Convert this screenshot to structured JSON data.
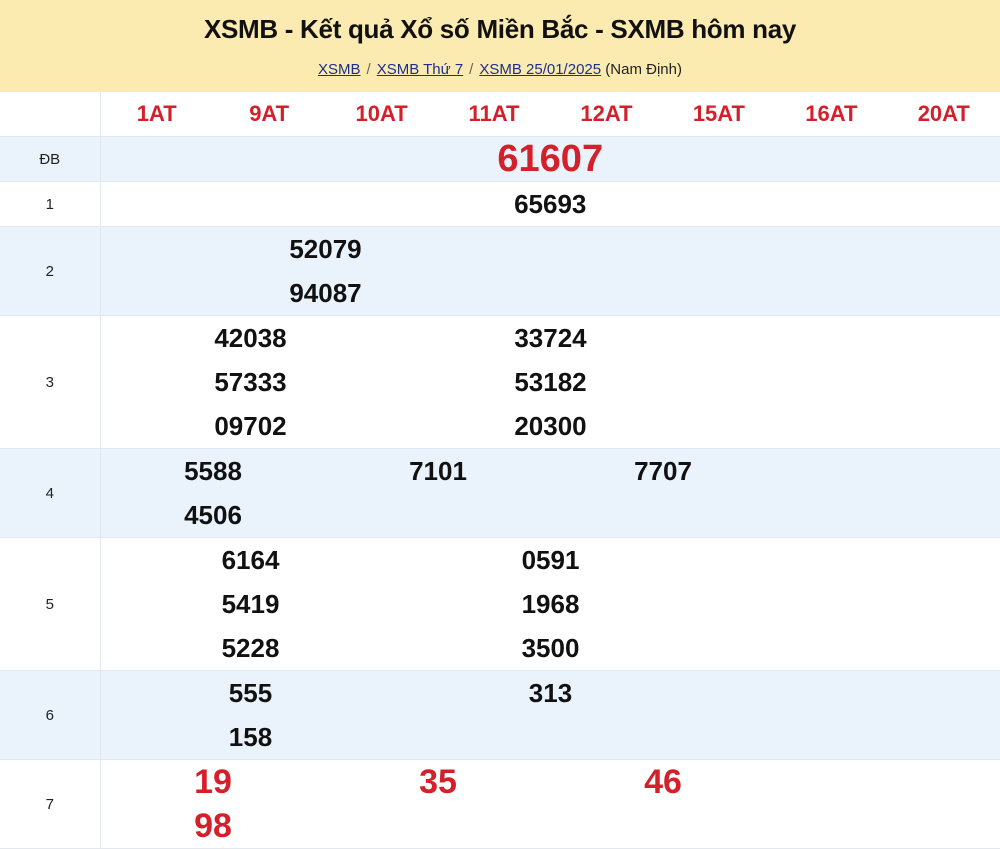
{
  "header": {
    "title": "XSMB - Kết quả Xổ số Miền Bắc - SXMB hôm nay",
    "breadcrumbs": [
      "XSMB",
      "XSMB Thứ 7",
      "XSMB 25/01/2025"
    ],
    "suffix": "(Nam Định)"
  },
  "codes": [
    "1AT",
    "9AT",
    "10AT",
    "11AT",
    "12AT",
    "15AT",
    "16AT",
    "20AT"
  ],
  "prizes": [
    {
      "label": "ĐB",
      "cols": 1,
      "numbers": [
        "61607"
      ]
    },
    {
      "label": "1",
      "cols": 1,
      "numbers": [
        "65693"
      ]
    },
    {
      "label": "2",
      "cols": 2,
      "numbers": [
        "52079",
        "94087"
      ]
    },
    {
      "label": "3",
      "cols": 3,
      "numbers": [
        "42038",
        "33724",
        "57333",
        "53182",
        "09702",
        "20300"
      ]
    },
    {
      "label": "4",
      "cols": 4,
      "numbers": [
        "5588",
        "7101",
        "7707",
        "4506"
      ]
    },
    {
      "label": "5",
      "cols": 3,
      "numbers": [
        "6164",
        "0591",
        "5419",
        "1968",
        "5228",
        "3500"
      ]
    },
    {
      "label": "6",
      "cols": 3,
      "numbers": [
        "555",
        "313",
        "158"
      ]
    },
    {
      "label": "7",
      "cols": 4,
      "numbers": [
        "19",
        "35",
        "46",
        "98"
      ]
    }
  ],
  "colors": {
    "accent": "#d3202a",
    "header_bg": "#fcebb0",
    "row_alt": "#eaf3fc"
  }
}
